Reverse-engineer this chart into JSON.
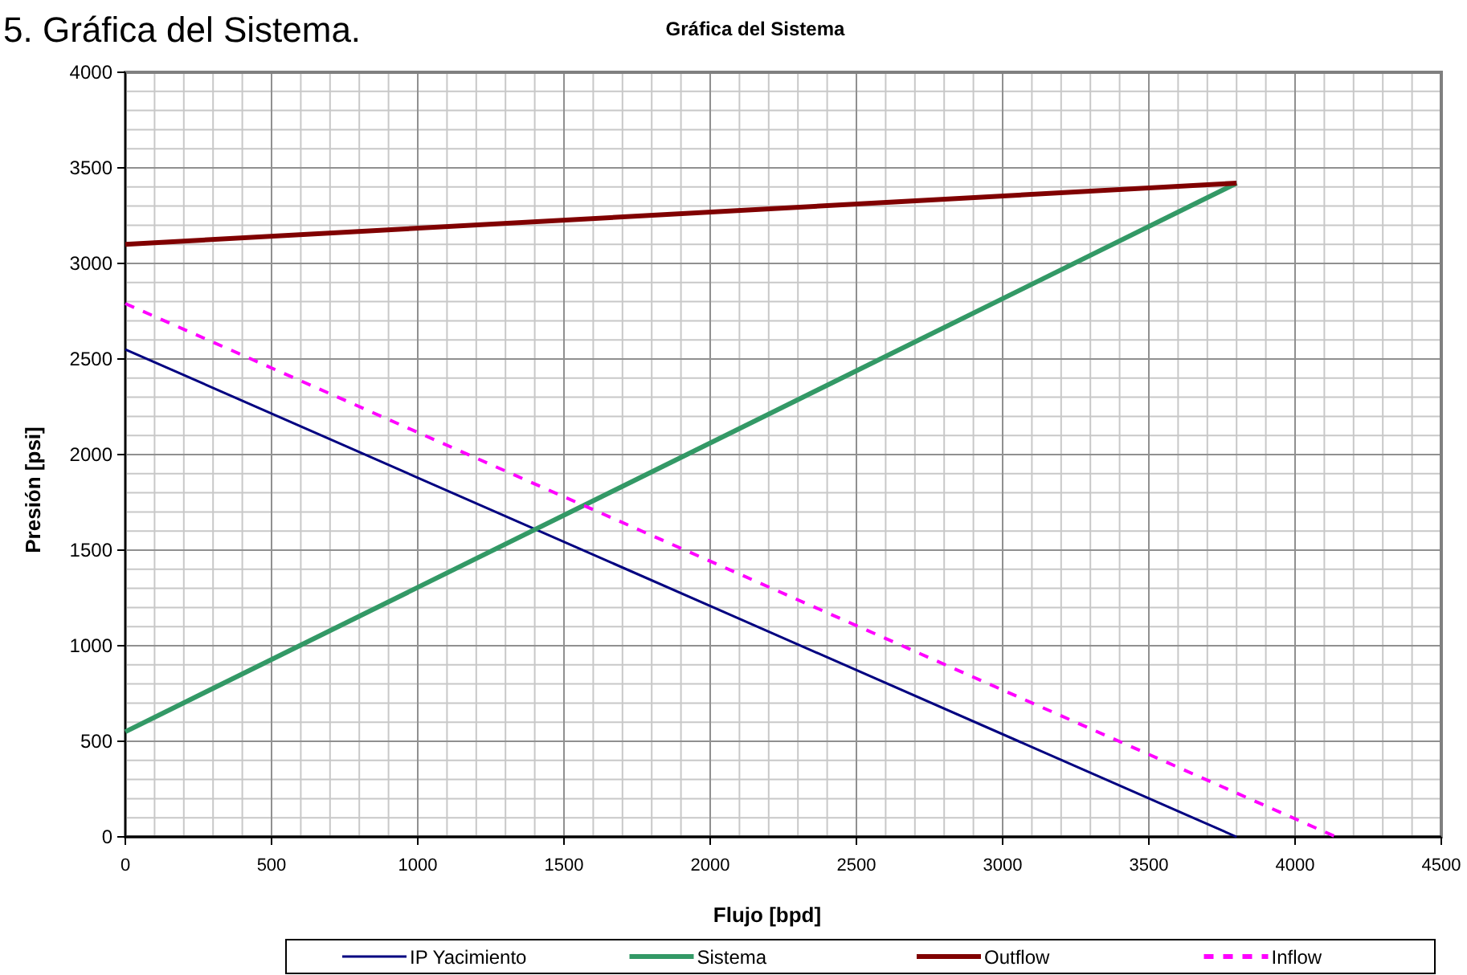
{
  "chart_data": {
    "type": "line",
    "title": "Gráfica del Sistema",
    "xlabel": "Flujo [bpd]",
    "ylabel": "Presión [psi]",
    "annotations": [
      "5. Gráfica del Sistema."
    ],
    "series": [
      {
        "name": "IP Yacimiento",
        "color": "#000080",
        "x": [
          0,
          3800
        ],
        "values": [
          2550,
          0
        ],
        "line_style": "solid"
      },
      {
        "name": "Sistema",
        "color": "#339966",
        "x": [
          0,
          3800
        ],
        "values": [
          550,
          3420
        ],
        "line_style": "solid"
      },
      {
        "name": "Outflow",
        "color": "#800000",
        "x": [
          0,
          3800
        ],
        "values": [
          3100,
          3420
        ],
        "line_style": "solid"
      },
      {
        "name": "Inflow",
        "color": "#ff00ff",
        "x": [
          0,
          4140
        ],
        "values": [
          2790,
          0
        ],
        "line_style": "dashed"
      }
    ],
    "xlim": [
      0,
      4500
    ],
    "xticks": [
      0,
      500,
      1000,
      1500,
      2000,
      2500,
      3000,
      3500,
      4000,
      4500
    ],
    "ylim": [
      0,
      4000
    ],
    "yticks": [
      0,
      500,
      1000,
      1500,
      2000,
      2500,
      3000,
      3500,
      4000
    ],
    "grid": true,
    "legend": "bottom",
    "marker": "none"
  }
}
